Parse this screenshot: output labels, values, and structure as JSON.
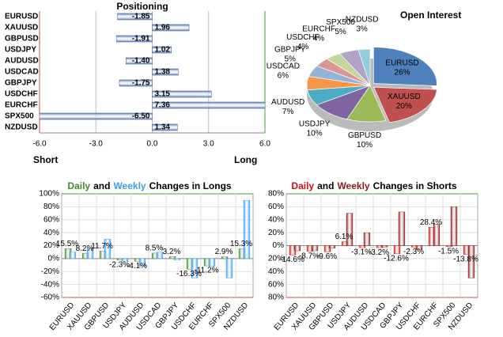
{
  "chart_data": [
    {
      "type": "hbar",
      "title": "Positioning",
      "categories": [
        "EURUSD",
        "XAUUSD",
        "GBPUSD",
        "USDJPY",
        "AUDUSD",
        "USDCAD",
        "GBPJPY",
        "USDCHF",
        "EURCHF",
        "SPX500",
        "NZDUSD"
      ],
      "values": [
        -1.85,
        1.96,
        -1.91,
        1.02,
        -1.4,
        1.38,
        -1.75,
        3.15,
        7.36,
        -6.5,
        1.34
      ],
      "value_labels": [
        "-1.85",
        "1.96",
        "-1.91",
        "1.02",
        "-1.40",
        "1.38",
        "-1.75",
        "3.15",
        "7.36",
        "-6.50",
        "1.34"
      ],
      "color": "#5b7fb9",
      "xlim": [
        -6,
        6
      ],
      "xticks": [
        {
          "value": -6,
          "label": "-6.0"
        },
        {
          "value": -3,
          "label": "-3.0"
        },
        {
          "value": 0,
          "label": "0.0"
        },
        {
          "value": 3,
          "label": "3.0"
        },
        {
          "value": 6,
          "label": "6.0"
        }
      ],
      "xlabel_left": "Short",
      "xlabel_right": "Long"
    },
    {
      "type": "pie",
      "title": "Open Interest",
      "categories": [
        "EURUSD",
        "XAUUSD",
        "GBPUSD",
        "USDJPY",
        "AUDUSD",
        "USDCAD",
        "GBPJPY",
        "USDCHF",
        "EURCHF",
        "SPX500",
        "NZDUSD"
      ],
      "values": [
        26,
        20,
        10,
        10,
        7,
        6,
        5,
        4,
        4,
        5,
        3
      ],
      "value_labels": [
        "26%",
        "20%",
        "10%",
        "10%",
        "7%",
        "6%",
        "5%",
        "4%",
        "4%",
        "5%",
        "3%"
      ],
      "colors": [
        "#4f81bd",
        "#c0504d",
        "#9bbb59",
        "#8064a2",
        "#4bacc6",
        "#f79646",
        "#95b3d7",
        "#d99694",
        "#c3d69b",
        "#b3a2c7",
        "#93cddd"
      ]
    },
    {
      "type": "bar",
      "title": "Changes in Longs",
      "title_joiner": "and",
      "categories": [
        "EURUSD",
        "XAUUSD",
        "GBPUSD",
        "USDJPY",
        "AUDUSD",
        "USDCAD",
        "GBPJPY",
        "USDCHF",
        "EURCHF",
        "SPX500",
        "NZDUSD"
      ],
      "series": [
        {
          "name": "Daily",
          "color": "#3b8c2a",
          "values": [
            15.5,
            8.2,
            11.7,
            -2.3,
            -4.1,
            8.5,
            3.2,
            -16.3,
            -11.2,
            2.9,
            15.3
          ],
          "value_labels": [
            "15.5%",
            "8.2%",
            "11.7%",
            "-2.3%",
            "-4.1%",
            "8.5%",
            "3.2%",
            "-16.3%",
            "-11.2%",
            "2.9%",
            "15.3%"
          ]
        },
        {
          "name": "Weekly",
          "color": "#3d9df0",
          "values": [
            10,
            15,
            30,
            -4,
            -12,
            10,
            -2,
            -30,
            -12,
            -30,
            90
          ]
        }
      ],
      "ylim": [
        -60,
        100
      ],
      "yticks": [
        {
          "value": -60,
          "label": "-60%"
        },
        {
          "value": -40,
          "label": "-40%"
        },
        {
          "value": -20,
          "label": "-20%"
        },
        {
          "value": 0,
          "label": "0%"
        },
        {
          "value": 20,
          "label": "20%"
        },
        {
          "value": 40,
          "label": "40%"
        },
        {
          "value": 60,
          "label": "60%"
        },
        {
          "value": 80,
          "label": "80%"
        },
        {
          "value": 100,
          "label": "100%"
        }
      ],
      "grid": true
    },
    {
      "type": "bar",
      "title": "Changes in Shorts",
      "title_joiner": "and",
      "categories": [
        "EURUSD",
        "XAUUSD",
        "GBPUSD",
        "USDJPY",
        "AUDUSD",
        "USDCAD",
        "GBPJPY",
        "USDCHF",
        "EURCHF",
        "SPX500",
        "NZDUSD"
      ],
      "series": [
        {
          "name": "Daily",
          "color": "#d01010",
          "values": [
            -14.6,
            -8.7,
            -9.6,
            6.1,
            -3.1,
            -3.2,
            -12.6,
            -2.3,
            28.4,
            -1.5,
            -13.8
          ],
          "value_labels": [
            "-14.6%",
            "-8.7%",
            "-9.6%",
            "6.1%",
            "-3.1%",
            "-3.2%",
            "-12.6%",
            "-2.3%",
            "28.4%",
            "-1.5%",
            "-13.8%"
          ]
        },
        {
          "name": "Weekly",
          "color": "#8b1a1a",
          "values": [
            -8,
            -8,
            -4,
            50,
            20,
            -2,
            52,
            -6,
            33,
            60,
            -50
          ]
        }
      ],
      "ylim": [
        -80,
        80
      ],
      "yticks": [
        {
          "value": -80,
          "label": "80%"
        },
        {
          "value": -60,
          "label": "60%"
        },
        {
          "value": -40,
          "label": "40%"
        },
        {
          "value": -20,
          "label": "20%"
        },
        {
          "value": 0,
          "label": "0%"
        },
        {
          "value": 20,
          "label": "20%"
        },
        {
          "value": 40,
          "label": "40%"
        },
        {
          "value": 60,
          "label": "60%"
        },
        {
          "value": 80,
          "label": "80%"
        }
      ],
      "grid": true
    }
  ]
}
